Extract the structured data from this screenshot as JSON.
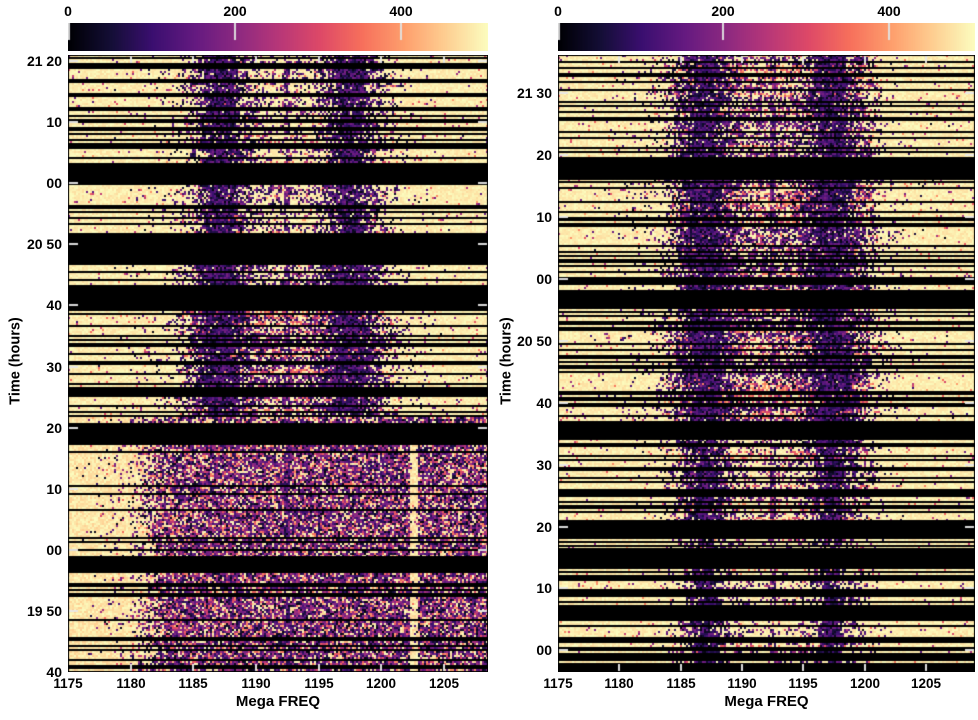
{
  "chart_data": {
    "type": "heatmap",
    "description": "Two side-by-side radio dynamic-spectrum (waterfall) panels, frequency vs time, magma colormap. Pale-yellow background is high intensity; dense thin black horizontal rows are flagged time samples; solid black horizontal blocks are data gaps; dark speckled vertical RFI bands sit near 1187 and 1197.5 MHz with a faint narrow line at 1192.5 MHz; the bottom third of the left panel is broadband purple noise with a clear pale stripe near 1202.6 MHz.",
    "xlabel": "Mega FREQ",
    "ylabel": "Time (hours)",
    "colormap": "magma",
    "colorbar": {
      "tick_labels": [
        "0",
        "200",
        "400"
      ],
      "tick_values": [
        0,
        200,
        400
      ],
      "vmin": 0,
      "vmax": 503
    },
    "panels": [
      {
        "id": "left",
        "x_range": [
          1175,
          1208.5
        ],
        "time_range_min": [
          1180,
          1281
        ],
        "time_span_label": "19:40 to 21:21",
        "xticks": [
          {
            "label": "1175",
            "mhz": 1175
          },
          {
            "label": "1180",
            "mhz": 1180
          },
          {
            "label": "1185",
            "mhz": 1185
          },
          {
            "label": "1190",
            "mhz": 1190
          },
          {
            "label": "1195",
            "mhz": 1195
          },
          {
            "label": "1200",
            "mhz": 1200
          },
          {
            "label": "1205",
            "mhz": 1205
          }
        ],
        "yticks": [
          {
            "label": "21 20",
            "min": 1280
          },
          {
            "label": "10",
            "min": 1270
          },
          {
            "label": "00",
            "min": 1260
          },
          {
            "label": "20 50",
            "min": 1250
          },
          {
            "label": "40",
            "min": 1240
          },
          {
            "label": "30",
            "min": 1230
          },
          {
            "label": "20",
            "min": 1220
          },
          {
            "label": "10",
            "min": 1210
          },
          {
            "label": "00",
            "min": 1200
          },
          {
            "label": "19 50",
            "min": 1190
          },
          {
            "label": "40",
            "min": 1180
          }
        ],
        "blackout_min": [
          [
            1259.8,
            1263.3
          ],
          [
            1247.0,
            1251.8
          ],
          [
            1239.8,
            1243.2
          ],
          [
            1217.2,
            1220.5
          ],
          [
            1196.2,
            1199.0
          ]
        ],
        "rfi_bands_mhz": [
          1187.2,
          1197.5
        ],
        "narrow_line_mhz": 1192.5,
        "clear_stripe_mhz": 1202.6,
        "segments": [
          {
            "t": [
              1263.3,
              1281.0
            ],
            "mode": "bands",
            "band": 0.85,
            "sigma": 1.25,
            "mottle": 0.2,
            "lines": 0.28,
            "streaks": 0.15
          },
          {
            "t": [
              1251.8,
              1259.8
            ],
            "mode": "bands",
            "band": 0.8,
            "sigma": 1.2,
            "mottle": 0.28,
            "lines": 0.4,
            "streaks": 0.2
          },
          {
            "t": [
              1243.2,
              1247.0
            ],
            "mode": "bands",
            "band": 0.9,
            "sigma": 1.4,
            "mottle": 0.35,
            "lines": 0.45,
            "streaks": 0.2
          },
          {
            "t": [
              1222.0,
              1239.8
            ],
            "mode": "bands",
            "band": 0.85,
            "sigma": 1.5,
            "mottle": 0.52,
            "lines": 0.3,
            "streaks": 0.45
          },
          {
            "t": [
              1220.5,
              1222.0
            ],
            "mode": "full",
            "density": 0.7,
            "lines": 0.3,
            "clear_left_mhz": 1178.5,
            "stripe": false
          },
          {
            "t": [
              1199.0,
              1217.2
            ],
            "mode": "full",
            "density": 0.8,
            "lines": 0.22,
            "clear_left_mhz": 1179.5,
            "stripe": true
          },
          {
            "t": [
              1180.0,
              1196.2
            ],
            "mode": "full",
            "density": 0.82,
            "lines": 0.25,
            "clear_left_mhz": 1179.5,
            "stripe": true
          }
        ]
      },
      {
        "id": "right",
        "x_range": [
          1175,
          1209.0
        ],
        "time_range_min": [
          1196.5,
          1296.2
        ],
        "time_span_label": "19:56 to 21:36",
        "xticks": [
          {
            "label": "1175",
            "mhz": 1175
          },
          {
            "label": "1180",
            "mhz": 1180
          },
          {
            "label": "1185",
            "mhz": 1185
          },
          {
            "label": "1190",
            "mhz": 1190
          },
          {
            "label": "1195",
            "mhz": 1195
          },
          {
            "label": "1200",
            "mhz": 1200
          },
          {
            "label": "1205",
            "mhz": 1205
          }
        ],
        "yticks": [
          {
            "label": "21 30",
            "min": 1290
          },
          {
            "label": "20",
            "min": 1280
          },
          {
            "label": "10",
            "min": 1270
          },
          {
            "label": "00",
            "min": 1260
          },
          {
            "label": "20 50",
            "min": 1250
          },
          {
            "label": "40",
            "min": 1240
          },
          {
            "label": "30",
            "min": 1230
          },
          {
            "label": "20",
            "min": 1220
          },
          {
            "label": "10",
            "min": 1210
          },
          {
            "label": "00",
            "min": 1200
          }
        ],
        "blackout_min": [
          [
            1276.0,
            1279.0
          ],
          [
            1255.2,
            1258.2
          ],
          [
            1234.0,
            1237.0
          ],
          [
            1218.6,
            1221.1
          ],
          [
            1213.3,
            1216.5
          ]
        ],
        "rfi_bands_mhz": [
          1187.0,
          1197.3
        ],
        "narrow_line_mhz": 1192.5,
        "clear_stripe_mhz": 0,
        "segments": [
          {
            "t": [
              1279.0,
              1296.2
            ],
            "mode": "bands",
            "band": 0.85,
            "sigma": 1.4,
            "mottle": 0.45,
            "lines": 0.32,
            "streaks": 0.35
          },
          {
            "t": [
              1258.2,
              1276.0
            ],
            "mode": "bands",
            "band": 0.9,
            "sigma": 1.5,
            "mottle": 0.5,
            "lines": 0.35,
            "streaks": 0.4
          },
          {
            "t": [
              1237.0,
              1255.2
            ],
            "mode": "bands",
            "band": 0.9,
            "sigma": 1.5,
            "mottle": 0.55,
            "lines": 0.35,
            "streaks": 0.45
          },
          {
            "t": [
              1221.1,
              1234.0
            ],
            "mode": "bands",
            "band": 0.8,
            "sigma": 1.1,
            "mottle": 0.3,
            "lines": 0.35,
            "streaks": 0.25
          },
          {
            "t": [
              1216.5,
              1218.6
            ],
            "mode": "bands",
            "band": 0.6,
            "sigma": 0.9,
            "mottle": 0.2,
            "lines": 0.5,
            "streaks": 0.1
          },
          {
            "t": [
              1196.5,
              1213.3
            ],
            "mode": "bands",
            "band": 0.78,
            "sigma": 0.9,
            "mottle": 0.18,
            "lines": 0.38,
            "streaks": 0.12
          }
        ]
      }
    ]
  },
  "colors": {
    "page_bg": "#ffffff",
    "text": "#000000",
    "high_value_bg": "#f8f6c5",
    "flag_black": "#000000",
    "tick_dash": "#e8e8e8"
  }
}
